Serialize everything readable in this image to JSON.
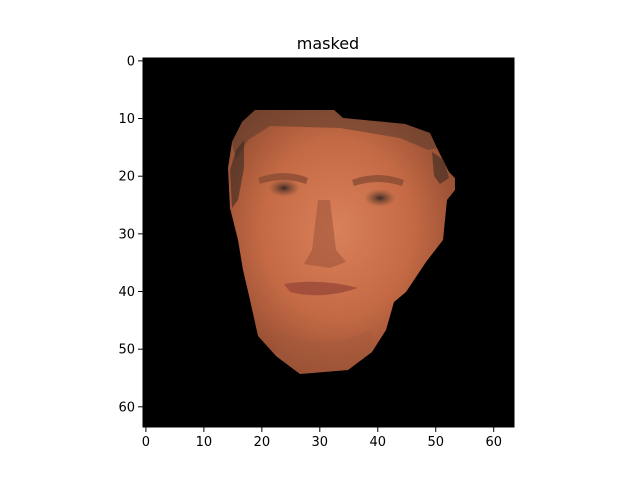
{
  "title": "masked",
  "image": {
    "description_icon": "masked-face-image",
    "background_color": "#000000",
    "skin_color": "#c56a45",
    "skin_shadow_color": "#8e4a30",
    "hair_color": "#3a2a22",
    "lip_color": "#9c4a3a",
    "eye_color": "#3b2a24"
  },
  "x_axis": {
    "ticks": [
      "0",
      "10",
      "20",
      "30",
      "40",
      "50",
      "60"
    ]
  },
  "y_axis": {
    "ticks": [
      "0",
      "10",
      "20",
      "30",
      "40",
      "50",
      "60"
    ]
  },
  "extent": {
    "x": [
      -0.5,
      63.5
    ],
    "y": [
      -0.5,
      63.5
    ]
  }
}
